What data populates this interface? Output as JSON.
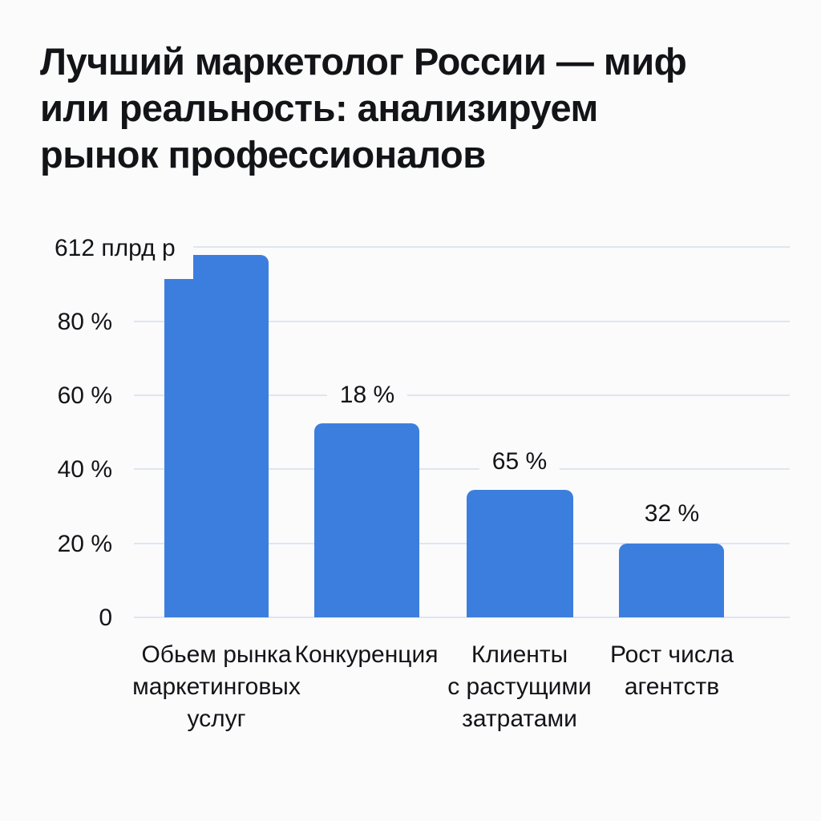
{
  "page": {
    "background": "#fbfbfc",
    "text_color": "#131417",
    "gridline_color": "#dfe5ef",
    "accent": "#3c7edd"
  },
  "title": "Лучший маркетолог России — миф\nили реальность: анализируем\nрынок профессионалов",
  "chart_data": {
    "type": "bar",
    "title": "Лучший маркетолог России — миф или реальность: анализируем рынок профессионалов",
    "categories": [
      "Обьем рынка\nмаркетинговых\nуслуг",
      "Конкуренция",
      "Клиенты\nс растущими\nзатратами",
      "Рост числа\nагентств"
    ],
    "values": [
      97.8,
      52.3,
      34.5,
      20
    ],
    "bar_labels": [
      "18 %",
      "65 %",
      "32 %"
    ],
    "yticks": [
      "612 плрд р",
      "80 %",
      "60 %",
      "40 %",
      "20 %",
      "0"
    ],
    "ylim": [
      0,
      100
    ],
    "grid": "horizontal",
    "legend": "none",
    "bar_color": "#3c7edd",
    "note": "Top gridline labeled 612 плрд р corresponds to the first bar (market volume); other bars annotated with 18 %, 65 %, 32 %."
  }
}
